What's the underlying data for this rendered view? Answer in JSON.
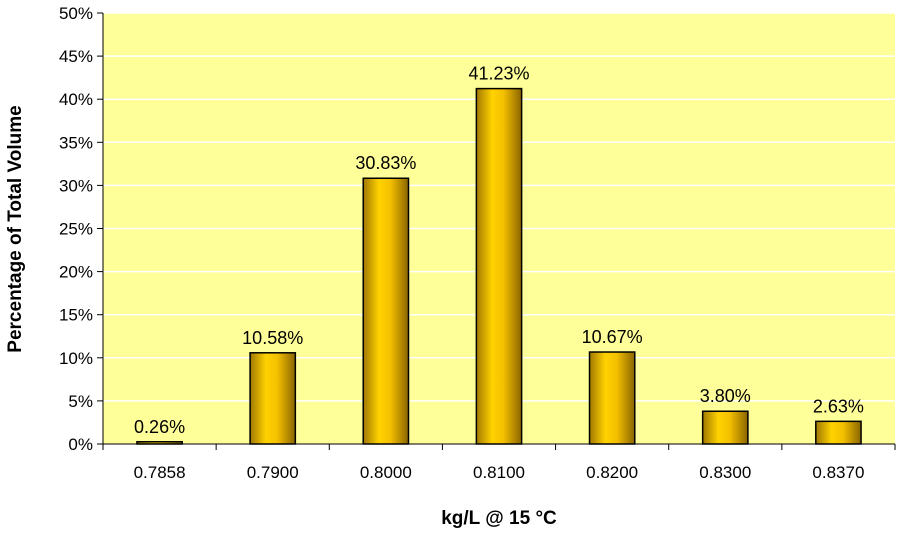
{
  "chart_data": {
    "type": "bar",
    "title": "",
    "xlabel": "kg/L @ 15 °C",
    "ylabel": "Percentage of Total Volume",
    "categories": [
      "0.7858",
      "0.7900",
      "0.8000",
      "0.8100",
      "0.8200",
      "0.8300",
      "0.8370"
    ],
    "values": [
      0.26,
      10.58,
      30.83,
      41.23,
      10.67,
      3.8,
      2.63
    ],
    "data_labels": [
      "0.26%",
      "10.58%",
      "30.83%",
      "41.23%",
      "10.67%",
      "3.80%",
      "2.63%"
    ],
    "y_ticks": [
      "0%",
      "5%",
      "10%",
      "15%",
      "20%",
      "25%",
      "30%",
      "35%",
      "40%",
      "45%",
      "50%"
    ],
    "ylim": [
      0,
      50
    ],
    "grid": true,
    "legend": "none",
    "colors": {
      "plot_background": "#ffff99",
      "bar_fill": "#e6b800",
      "bar_outline": "#000000",
      "gridline": "#ffffff"
    }
  }
}
